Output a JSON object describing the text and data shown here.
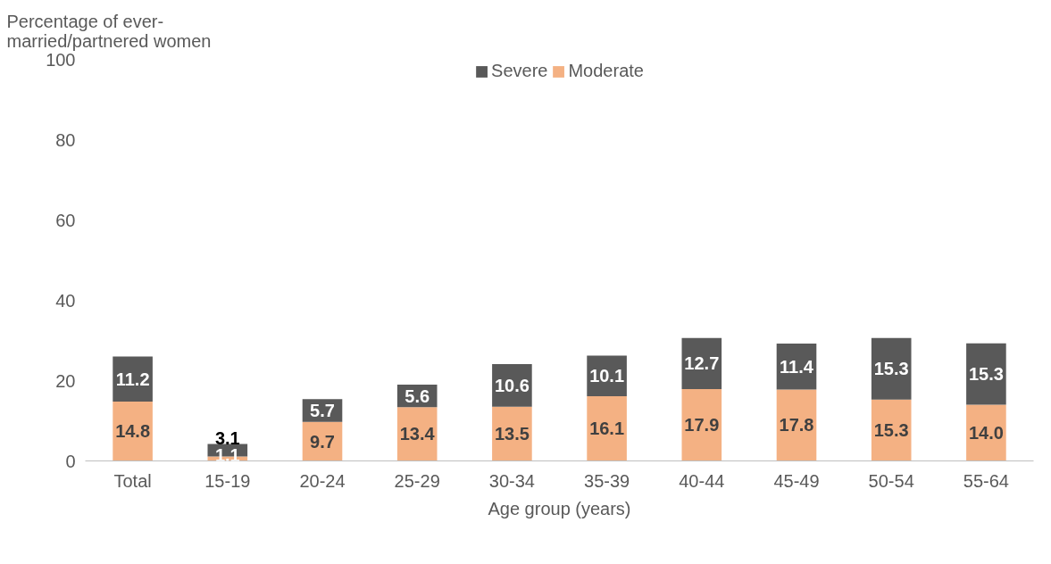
{
  "chart_data": {
    "type": "bar",
    "stacked": true,
    "ylabel": "Percentage of ever-married/partnered women",
    "xlabel": "Age group (years)",
    "categories": [
      "Total",
      "15-19",
      "20-24",
      "25-29",
      "30-34",
      "35-39",
      "40-44",
      "45-49",
      "50-54",
      "55-64"
    ],
    "series": [
      {
        "name": "Moderate",
        "color": "#f4b183",
        "values": [
          14.8,
          1.1,
          9.7,
          13.4,
          13.5,
          16.1,
          17.9,
          17.8,
          15.3,
          14.0
        ],
        "value_labels": [
          "14.8",
          "1.1",
          "9.7",
          "13.4",
          "13.5",
          "16.1",
          "17.9",
          "17.8",
          "15.3",
          "14.0"
        ]
      },
      {
        "name": "Severe",
        "color": "#595959",
        "values": [
          11.2,
          3.1,
          5.7,
          5.6,
          10.6,
          10.1,
          12.7,
          11.4,
          15.3,
          15.3
        ],
        "value_labels": [
          "11.2",
          "3.1",
          "5.7",
          "5.6",
          "10.6",
          "10.1",
          "12.7",
          "11.4",
          "15.3",
          "15.3"
        ]
      }
    ],
    "ylim": [
      0,
      100
    ],
    "yticks": [
      0,
      20,
      40,
      60,
      80,
      100
    ],
    "legend": "top",
    "grid": false
  }
}
